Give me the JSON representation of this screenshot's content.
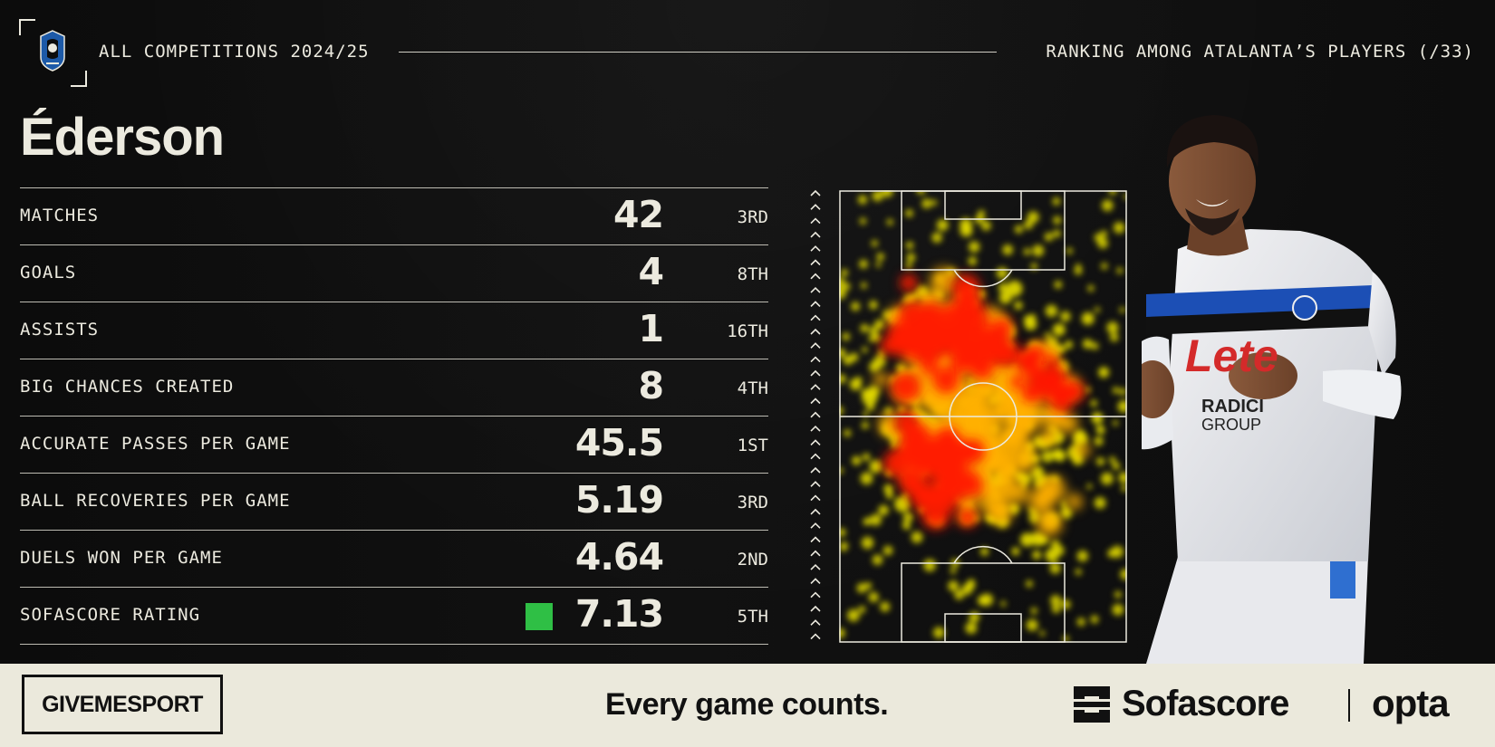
{
  "header": {
    "competition": "ALL COMPETITIONS 2024/25",
    "ranking_context": "RANKING AMONG ATALANTA’S PLAYERS (/33)"
  },
  "player": {
    "name": "Éderson"
  },
  "stats": [
    {
      "label": "MATCHES",
      "value": "42",
      "rank": "3RD"
    },
    {
      "label": "GOALS",
      "value": "4",
      "rank": "8TH"
    },
    {
      "label": "ASSISTS",
      "value": "1",
      "rank": "16TH"
    },
    {
      "label": "BIG CHANCES CREATED",
      "value": "8",
      "rank": "4TH"
    },
    {
      "label": "ACCURATE PASSES PER GAME",
      "value": "45.5",
      "rank": "1ST"
    },
    {
      "label": "BALL RECOVERIES PER GAME",
      "value": "5.19",
      "rank": "3RD"
    },
    {
      "label": "DUELS WON PER GAME",
      "value": "4.64",
      "rank": "2ND"
    },
    {
      "label": "SOFASCORE RATING",
      "value": "7.13",
      "rank": "5TH"
    }
  ],
  "rating_color": "#2fbf45",
  "heatmap": {
    "direction": "attacking-up",
    "hot_color": "#ff1a00",
    "mid_color": "#ffb000",
    "low_color": "#e8e000"
  },
  "footer": {
    "publisher": "GIVEMESPORT",
    "tagline": "Every game counts.",
    "brand": "Sofascore",
    "partner": "opta"
  },
  "icons": {
    "club_crest": "atalanta-crest-icon",
    "sofascore_logo": "sofascore-logo-icon"
  }
}
